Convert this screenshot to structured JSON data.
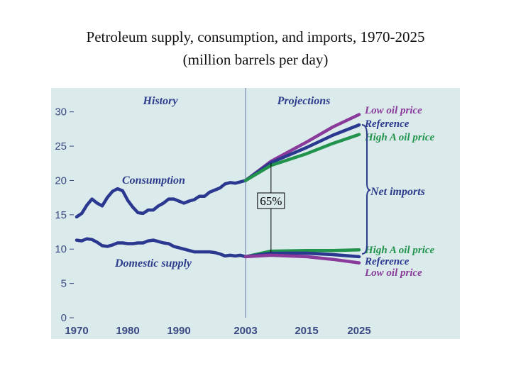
{
  "title_line1": "Petroleum supply, consumption, and imports, 1970-2025",
  "title_line2": "(million barrels per day)",
  "colors": {
    "background": "#dbeaeb",
    "consumption": "#2a3890",
    "domestic": "#2a3890",
    "low_oil_price": "#8a3a9a",
    "reference": "#2a3890",
    "high_a_oil_price": "#21934c",
    "label_text": "#2d3d8c"
  },
  "chart_data": {
    "type": "line",
    "x_ticks": [
      "1970",
      "1980",
      "1990",
      "2003",
      "2015",
      "2025"
    ],
    "y_ticks": [
      "0",
      "5",
      "10",
      "15",
      "20",
      "25",
      "30"
    ],
    "ylim": [
      0,
      31
    ],
    "xlim": [
      1966,
      2030
    ],
    "section_labels": {
      "history": "History",
      "projections": "Projections",
      "divider_year": 2003
    },
    "series_labels": {
      "consumption": "Consumption",
      "domestic": "Domestic supply",
      "net_imports": "Net imports",
      "upper": [
        "Low oil price",
        "Reference",
        "High A oil price"
      ],
      "lower": [
        "High A oil price",
        "Reference",
        "Low oil price"
      ]
    },
    "annotation": {
      "text": "65%",
      "year": 2008,
      "from": 9.5,
      "to": 22.5
    },
    "series": [
      {
        "name": "Consumption",
        "color_key": "consumption",
        "points": [
          [
            1970,
            14.7
          ],
          [
            1971,
            15.2
          ],
          [
            1972,
            16.4
          ],
          [
            1973,
            17.3
          ],
          [
            1974,
            16.7
          ],
          [
            1975,
            16.3
          ],
          [
            1976,
            17.5
          ],
          [
            1977,
            18.4
          ],
          [
            1978,
            18.8
          ],
          [
            1979,
            18.5
          ],
          [
            1980,
            17.1
          ],
          [
            1981,
            16.1
          ],
          [
            1982,
            15.3
          ],
          [
            1983,
            15.2
          ],
          [
            1984,
            15.7
          ],
          [
            1985,
            15.7
          ],
          [
            1986,
            16.3
          ],
          [
            1987,
            16.7
          ],
          [
            1988,
            17.3
          ],
          [
            1989,
            17.3
          ],
          [
            1990,
            17.0
          ],
          [
            1991,
            16.7
          ],
          [
            1992,
            17.0
          ],
          [
            1993,
            17.2
          ],
          [
            1994,
            17.7
          ],
          [
            1995,
            17.7
          ],
          [
            1996,
            18.3
          ],
          [
            1997,
            18.6
          ],
          [
            1998,
            18.9
          ],
          [
            1999,
            19.5
          ],
          [
            2000,
            19.7
          ],
          [
            2001,
            19.6
          ],
          [
            2002,
            19.8
          ],
          [
            2003,
            20.0
          ]
        ]
      },
      {
        "name": "Low oil price",
        "color_key": "low_oil_price",
        "points": [
          [
            2003,
            20.0
          ],
          [
            2008,
            22.8
          ],
          [
            2015,
            25.6
          ],
          [
            2020,
            27.8
          ],
          [
            2025,
            29.6
          ]
        ]
      },
      {
        "name": "Reference",
        "color_key": "reference",
        "points": [
          [
            2003,
            20.0
          ],
          [
            2008,
            22.6
          ],
          [
            2015,
            24.8
          ],
          [
            2020,
            26.6
          ],
          [
            2025,
            28.1
          ]
        ]
      },
      {
        "name": "High A oil price",
        "color_key": "high_a_oil_price",
        "points": [
          [
            2003,
            20.0
          ],
          [
            2008,
            22.2
          ],
          [
            2015,
            23.9
          ],
          [
            2020,
            25.4
          ],
          [
            2025,
            26.7
          ]
        ]
      },
      {
        "name": "Domestic supply",
        "color_key": "domestic",
        "points": [
          [
            1970,
            11.3
          ],
          [
            1971,
            11.2
          ],
          [
            1972,
            11.5
          ],
          [
            1973,
            11.4
          ],
          [
            1974,
            11.0
          ],
          [
            1975,
            10.5
          ],
          [
            1976,
            10.4
          ],
          [
            1977,
            10.6
          ],
          [
            1978,
            10.9
          ],
          [
            1979,
            10.9
          ],
          [
            1980,
            10.8
          ],
          [
            1981,
            10.8
          ],
          [
            1982,
            10.9
          ],
          [
            1983,
            10.9
          ],
          [
            1984,
            11.2
          ],
          [
            1985,
            11.3
          ],
          [
            1986,
            11.1
          ],
          [
            1987,
            10.9
          ],
          [
            1988,
            10.8
          ],
          [
            1989,
            10.4
          ],
          [
            1990,
            10.2
          ],
          [
            1991,
            10.0
          ],
          [
            1992,
            9.8
          ],
          [
            1993,
            9.6
          ],
          [
            1994,
            9.6
          ],
          [
            1995,
            9.6
          ],
          [
            1996,
            9.6
          ],
          [
            1997,
            9.5
          ],
          [
            1998,
            9.3
          ],
          [
            1999,
            9.0
          ],
          [
            2000,
            9.1
          ],
          [
            2001,
            9.0
          ],
          [
            2002,
            9.1
          ],
          [
            2003,
            8.9
          ]
        ]
      },
      {
        "name": "High A oil price",
        "color_key": "high_a_oil_price",
        "points": [
          [
            2003,
            8.9
          ],
          [
            2008,
            9.7
          ],
          [
            2015,
            9.8
          ],
          [
            2020,
            9.8
          ],
          [
            2025,
            9.9
          ]
        ]
      },
      {
        "name": "Reference",
        "color_key": "reference",
        "points": [
          [
            2003,
            8.9
          ],
          [
            2008,
            9.4
          ],
          [
            2015,
            9.4
          ],
          [
            2020,
            9.2
          ],
          [
            2025,
            8.9
          ]
        ]
      },
      {
        "name": "Low oil price",
        "color_key": "low_oil_price",
        "points": [
          [
            2003,
            8.9
          ],
          [
            2008,
            9.1
          ],
          [
            2015,
            8.9
          ],
          [
            2020,
            8.5
          ],
          [
            2025,
            8.0
          ]
        ]
      }
    ]
  }
}
